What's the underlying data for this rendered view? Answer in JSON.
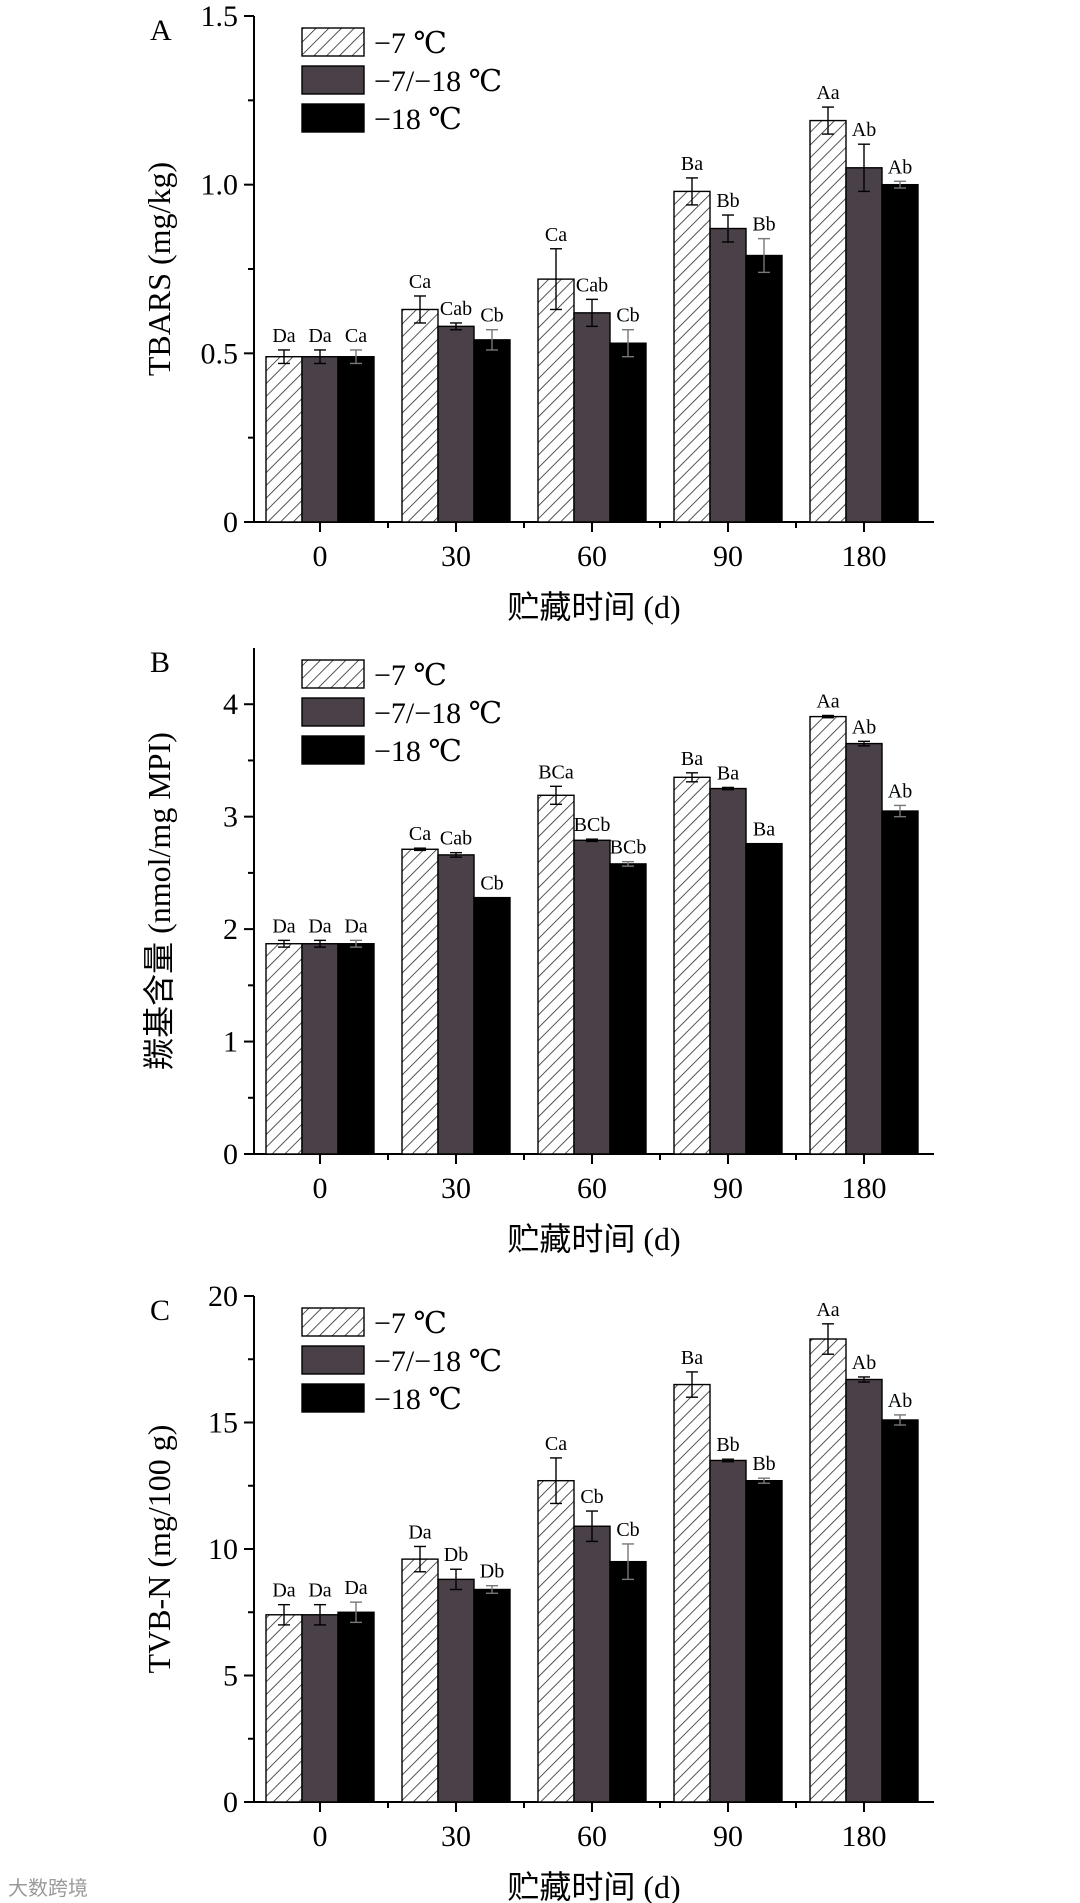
{
  "watermark": "大数跨境",
  "colors": {
    "neg7": "hatched-white",
    "mixed": "#4a4048",
    "neg18": "#000000"
  },
  "chart_data": [
    {
      "type": "bar",
      "panel": "A",
      "ylabel": "TBARS (mg/kg)",
      "xlabel": "贮藏时间 (d)",
      "categories": [
        "0",
        "30",
        "60",
        "90",
        "180"
      ],
      "ylim": [
        0,
        1.5
      ],
      "yticks": [
        "0",
        "0.5",
        "1.0",
        "1.5"
      ],
      "tick_values": [
        0,
        0.5,
        1.0,
        1.5
      ],
      "legend_placement": "top-left",
      "series": [
        {
          "name": "−7 ℃",
          "values": [
            0.49,
            0.63,
            0.72,
            0.98,
            1.19
          ],
          "errors": [
            0.02,
            0.04,
            0.09,
            0.04,
            0.04
          ],
          "labels": [
            "Da",
            "Ca",
            "Ca",
            "Ba",
            "Aa"
          ]
        },
        {
          "name": "−7/−18 ℃",
          "values": [
            0.49,
            0.58,
            0.62,
            0.87,
            1.05
          ],
          "errors": [
            0.02,
            0.01,
            0.04,
            0.04,
            0.07
          ],
          "labels": [
            "Da",
            "Cab",
            "Cab",
            "Bb",
            "Ab"
          ]
        },
        {
          "name": "−18 ℃",
          "values": [
            0.49,
            0.54,
            0.53,
            0.79,
            1.0
          ],
          "errors": [
            0.02,
            0.03,
            0.04,
            0.05,
            0.01
          ],
          "labels": [
            "Ca",
            "Cb",
            "Cb",
            "Bb",
            "Ab"
          ]
        }
      ]
    },
    {
      "type": "bar",
      "panel": "B",
      "ylabel": "羰基含量 (nmol/mg MPI)",
      "xlabel": "贮藏时间 (d)",
      "categories": [
        "0",
        "30",
        "60",
        "90",
        "180"
      ],
      "ylim": [
        0,
        4.5
      ],
      "yticks": [
        "0",
        "1",
        "2",
        "3",
        "4"
      ],
      "tick_values": [
        0,
        1,
        2,
        3,
        4
      ],
      "legend_placement": "top-left",
      "series": [
        {
          "name": "−7 ℃",
          "values": [
            1.87,
            2.71,
            3.19,
            3.35,
            3.89
          ],
          "errors": [
            0.03,
            0.01,
            0.08,
            0.04,
            0.01
          ],
          "labels": [
            "Da",
            "Ca",
            "BCa",
            "Ba",
            "Aa"
          ]
        },
        {
          "name": "−7/−18 ℃",
          "values": [
            1.87,
            2.66,
            2.79,
            3.25,
            3.65
          ],
          "errors": [
            0.03,
            0.02,
            0.01,
            0.01,
            0.02
          ],
          "labels": [
            "Da",
            "Cab",
            "BCb",
            "Ba",
            "Ab"
          ]
        },
        {
          "name": "−18 ℃",
          "values": [
            1.87,
            2.28,
            2.58,
            2.76,
            3.05
          ],
          "errors": [
            0.03,
            0.0,
            0.02,
            0.0,
            0.05
          ],
          "labels": [
            "Da",
            "Cb",
            "BCb",
            "Ba",
            "Ab"
          ]
        }
      ]
    },
    {
      "type": "bar",
      "panel": "C",
      "ylabel": "TVB-N (mg/100 g)",
      "xlabel": "贮藏时间 (d)",
      "categories": [
        "0",
        "30",
        "60",
        "90",
        "180"
      ],
      "ylim": [
        0,
        20
      ],
      "yticks": [
        "0",
        "5",
        "10",
        "15",
        "20"
      ],
      "tick_values": [
        0,
        5,
        10,
        15,
        20
      ],
      "legend_placement": "top-left",
      "series": [
        {
          "name": "−7 ℃",
          "values": [
            7.4,
            9.6,
            12.7,
            16.5,
            18.3
          ],
          "errors": [
            0.4,
            0.5,
            0.9,
            0.5,
            0.6
          ],
          "labels": [
            "Da",
            "Da",
            "Ca",
            "Ba",
            "Aa"
          ]
        },
        {
          "name": "−7/−18 ℃",
          "values": [
            7.4,
            8.8,
            10.9,
            13.5,
            16.7
          ],
          "errors": [
            0.4,
            0.4,
            0.6,
            0.05,
            0.1
          ],
          "labels": [
            "Da",
            "Db",
            "Cb",
            "Bb",
            "Ab"
          ]
        },
        {
          "name": "−18 ℃",
          "values": [
            7.5,
            8.4,
            9.5,
            12.7,
            15.1
          ],
          "errors": [
            0.4,
            0.15,
            0.7,
            0.1,
            0.2
          ],
          "labels": [
            "Da",
            "Db",
            "Cb",
            "Bb",
            "Ab"
          ]
        }
      ]
    }
  ]
}
